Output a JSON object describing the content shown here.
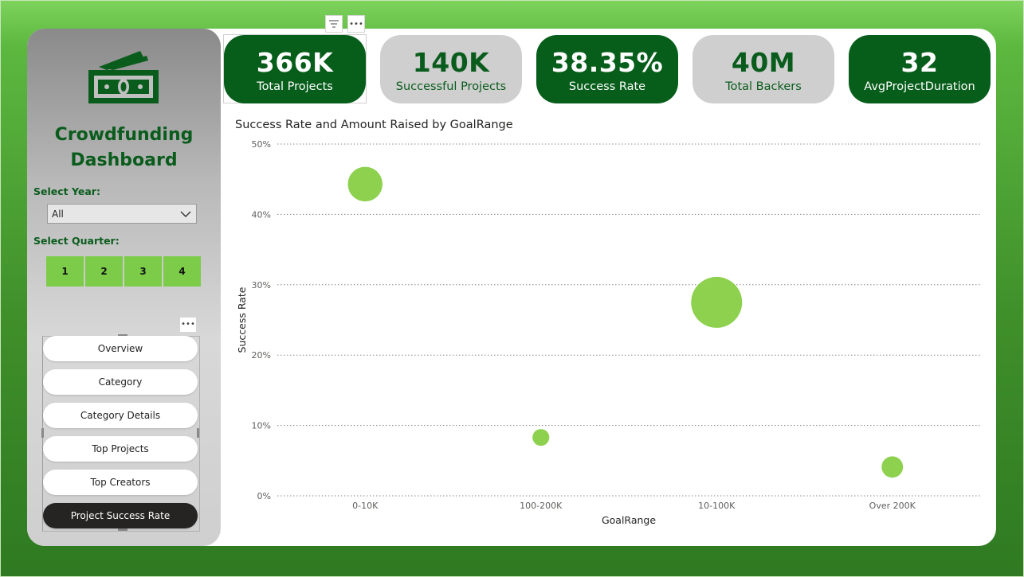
{
  "sidebar": {
    "title_line1": "Crowdfunding",
    "title_line2": "Dashboard",
    "year_label": "Select Year:",
    "year_value": "All",
    "quarter_label": "Select Quarter:",
    "quarters": [
      "1",
      "2",
      "3",
      "4"
    ],
    "nav": [
      "Overview",
      "Category",
      "Category Details",
      "Top Projects",
      "Top Creators",
      "Project Success Rate"
    ],
    "active_nav": "Project Success Rate"
  },
  "kpis": [
    {
      "value": "366K",
      "label": "Total Projects"
    },
    {
      "value": "140K",
      "label": "Successful Projects"
    },
    {
      "value": "38.35%",
      "label": "Success Rate"
    },
    {
      "value": "40M",
      "label": "Total Backers"
    },
    {
      "value": "32",
      "label": "AvgProjectDuration"
    }
  ],
  "colors": {
    "dark_green": "#075e1b",
    "bubble": "#8ed14f",
    "active_nav": "#252423"
  },
  "icons": {
    "logo": "money-icon",
    "filter": "filter-icon",
    "more": "more-options-icon",
    "dropdown": "chevron-down-icon"
  },
  "chart_data": {
    "type": "scatter",
    "title": "Success Rate and Amount Raised by GoalRange",
    "xlabel": "GoalRange",
    "ylabel": "Success Rate",
    "categories": [
      "0-10K",
      "100-200K",
      "10-100K",
      "Over 200K"
    ],
    "y_values": [
      0.443,
      0.083,
      0.275,
      0.041
    ],
    "bubble_size_relative": [
      0.68,
      0.33,
      1.0,
      0.42
    ],
    "y_ticks": [
      "0%",
      "10%",
      "20%",
      "30%",
      "40%",
      "50%"
    ],
    "ylim": [
      0,
      0.5
    ],
    "grid": true
  }
}
